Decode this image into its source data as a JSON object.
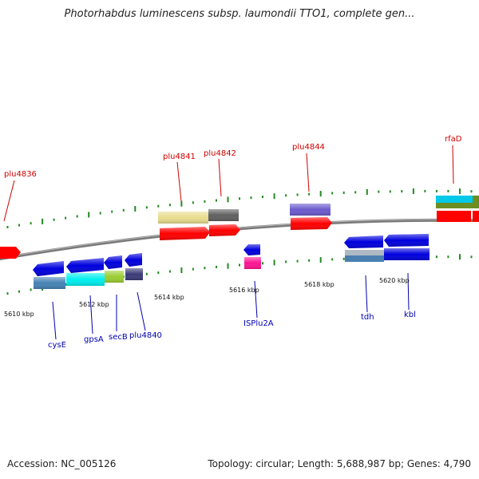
{
  "title": "Photorhabdus luminescens subsp. laumondii TTO1, complete gen...",
  "footer": {
    "accession": "Accession: NC_005126",
    "summary": "Topology: circular; Length: 5,688,987 bp; Genes: 4,790"
  },
  "scale_ticks": [
    {
      "label": "5610 kbp"
    },
    {
      "label": "5612 kbp"
    },
    {
      "label": "5614 kbp"
    },
    {
      "label": "5616 kbp"
    },
    {
      "label": "5618 kbp"
    },
    {
      "label": "5620 kbp"
    }
  ],
  "forward_labels": [
    {
      "name": "plu4836"
    },
    {
      "name": "plu4841"
    },
    {
      "name": "plu4842"
    },
    {
      "name": "plu4844"
    },
    {
      "name": "rfaD"
    }
  ],
  "reverse_labels": [
    {
      "name": "cysE"
    },
    {
      "name": "gpsA"
    },
    {
      "name": "secB"
    },
    {
      "name": "plu4840"
    },
    {
      "name": "ISPlu2A"
    },
    {
      "name": "tdh"
    },
    {
      "name": "kbl"
    }
  ],
  "colors": {
    "forward_gene": "#ff0000",
    "reverse_gene": "#0000dd",
    "forward_label": "#d00000",
    "reverse_label": "#0000b0",
    "backbone": "#808080",
    "tick": "#228b22"
  }
}
